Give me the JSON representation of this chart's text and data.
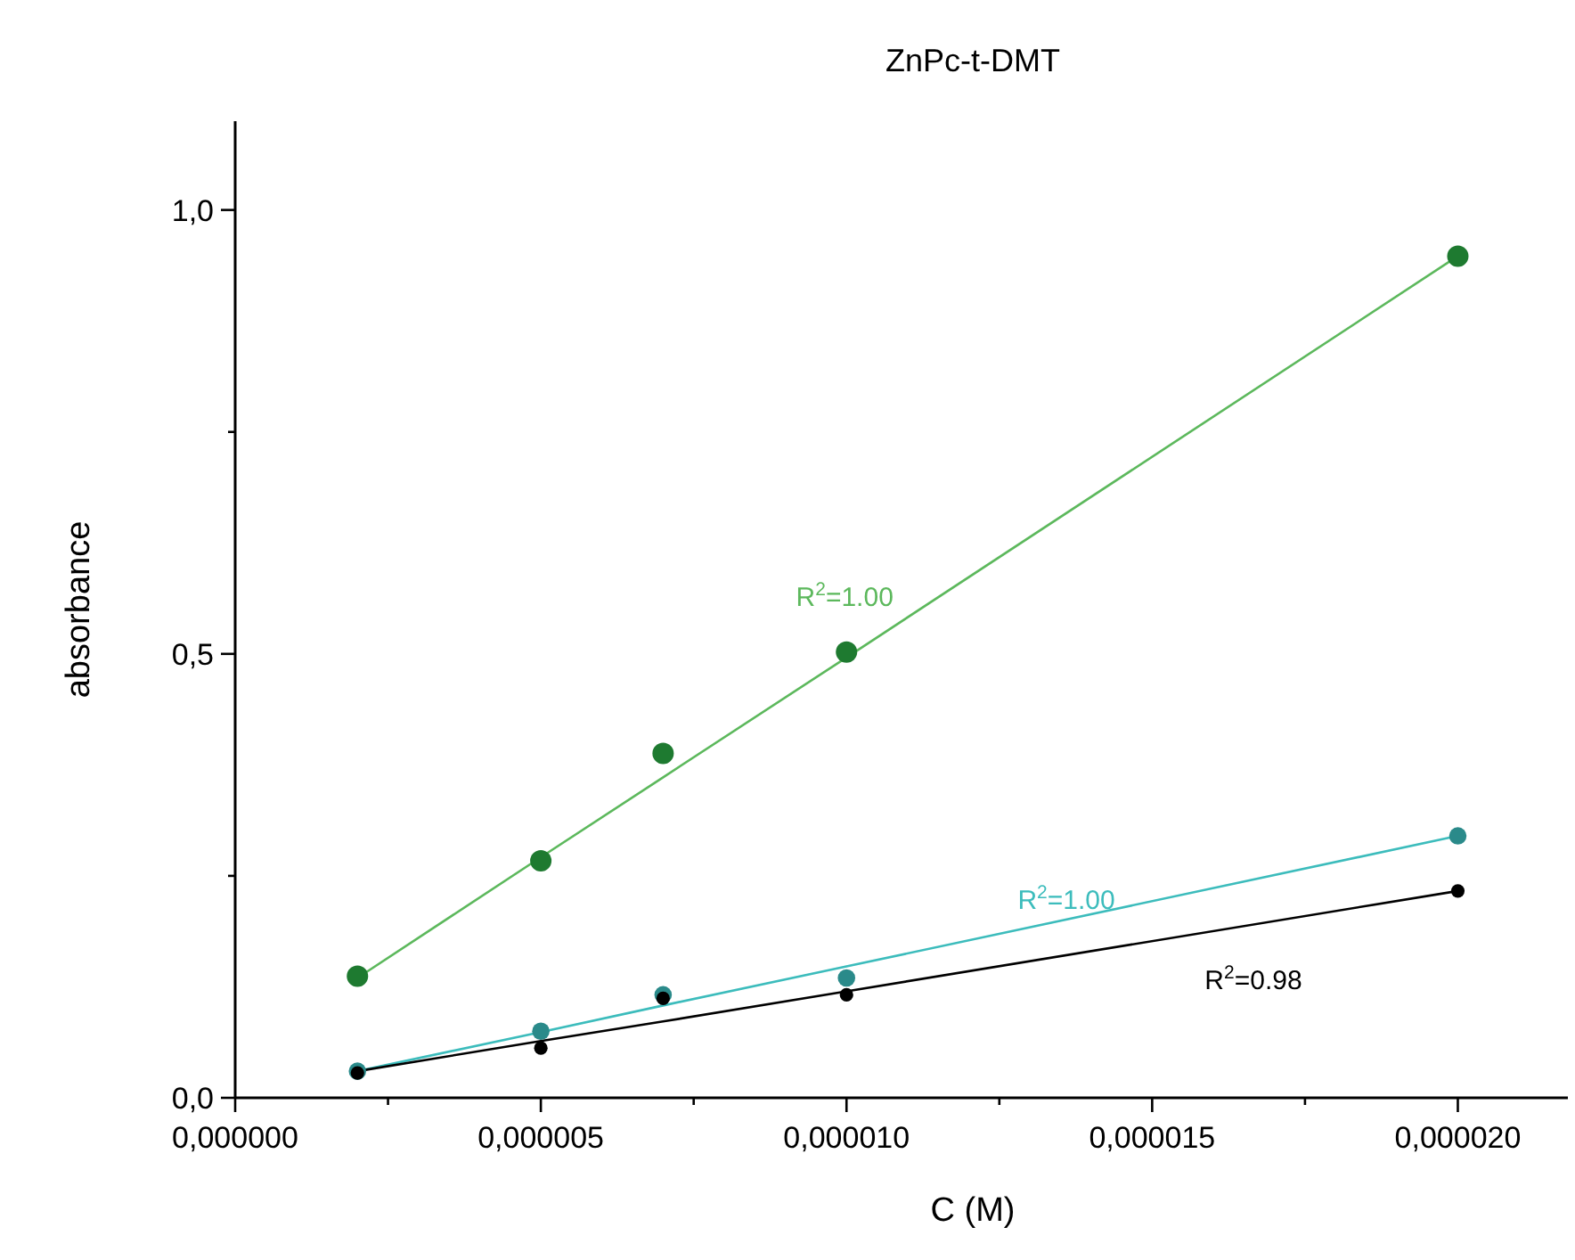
{
  "chart_data": {
    "type": "scatter",
    "title": "ZnPc-t-DMT",
    "xlabel": "C (M)",
    "ylabel": "absorbance",
    "xlim": [
      0,
      2.18e-05
    ],
    "ylim": [
      0,
      1.1
    ],
    "xticks": [
      {
        "value": 0,
        "label": "0,000000"
      },
      {
        "value": 2.5e-06,
        "label": null
      },
      {
        "value": 5e-06,
        "label": "0,000005"
      },
      {
        "value": 7.5e-06,
        "label": null
      },
      {
        "value": 1e-05,
        "label": "0,000010"
      },
      {
        "value": 1.25e-05,
        "label": null
      },
      {
        "value": 1.5e-05,
        "label": "0,000015"
      },
      {
        "value": 1.75e-05,
        "label": null
      },
      {
        "value": 2e-05,
        "label": "0,000020"
      }
    ],
    "yticks": [
      {
        "value": 0,
        "label": "0,0"
      },
      {
        "value": 0.25,
        "label": null
      },
      {
        "value": 0.5,
        "label": "0,5"
      },
      {
        "value": 0.75,
        "label": null
      },
      {
        "value": 1,
        "label": "1,0"
      }
    ],
    "x": [
      2e-06,
      5e-06,
      7e-06,
      1e-05,
      2e-05
    ],
    "marker": "circle",
    "grid": false,
    "series": [
      {
        "type": "line",
        "marker": "none",
        "color": "#5cb85c",
        "values": [
          0.135,
          0.271,
          0.361,
          0.496,
          0.948
        ]
      },
      {
        "type": "line",
        "marker": "none",
        "color": "#3cbcbc",
        "values": [
          0.03,
          0.074,
          0.104,
          0.148,
          0.295
        ]
      },
      {
        "type": "line",
        "marker": "none",
        "color": "#000000",
        "values": [
          0.03,
          0.064,
          0.086,
          0.12,
          0.233
        ]
      },
      {
        "color": "#1e7a30",
        "values": [
          0.137,
          0.267,
          0.388,
          0.502,
          0.948
        ]
      },
      {
        "color": "#2a8a8a",
        "values": [
          0.03,
          0.075,
          0.116,
          0.135,
          0.295
        ]
      },
      {
        "color": "#000000",
        "values": [
          0.028,
          0.056,
          0.112,
          0.116,
          0.233
        ]
      }
    ],
    "annotations": [
      "R$^{2}$=1.00",
      "R$^{2}$=1.00",
      "R$^{2}$=0.98"
    ]
  }
}
